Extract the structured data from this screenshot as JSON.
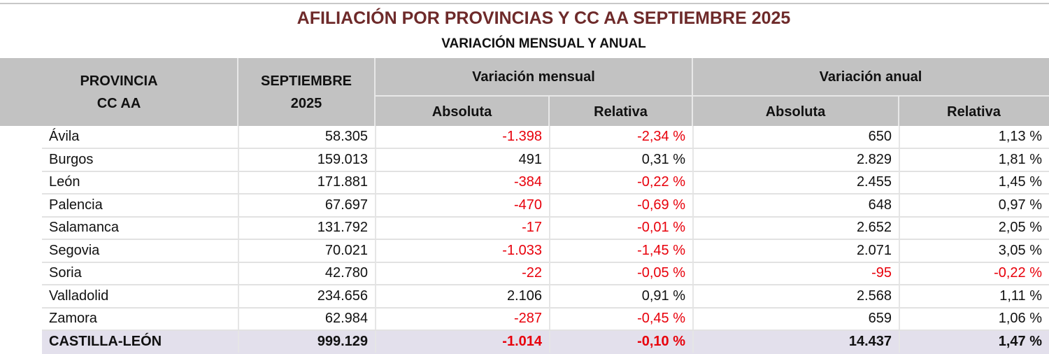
{
  "title": "AFILIACIÓN POR PROVINCIAS Y CC AA  SEPTIEMBRE 2025",
  "subtitle": "VARIACIÓN MENSUAL Y ANUAL",
  "headers": {
    "provincia_line1": "PROVINCIA",
    "provincia_line2": "CC AA",
    "month_line1": "SEPTIEMBRE",
    "month_line2": "2025",
    "monthly": "Variación  mensual",
    "annual": "Variación anual",
    "absolute": "Absoluta",
    "relative": "Relativa"
  },
  "colors": {
    "title": "#6e2a2a",
    "negative": "#e8000b",
    "header_bg": "#c2c2c2",
    "total_bg": "#e3e0ec"
  },
  "rows": [
    {
      "name": "Ávila",
      "total": "58.305",
      "m_abs": "-1.398",
      "m_rel": "-2,34 %",
      "a_abs": "650",
      "a_rel": "1,13 %"
    },
    {
      "name": "Burgos",
      "total": "159.013",
      "m_abs": "491",
      "m_rel": "0,31 %",
      "a_abs": "2.829",
      "a_rel": "1,81 %"
    },
    {
      "name": "León",
      "total": "171.881",
      "m_abs": "-384",
      "m_rel": "-0,22 %",
      "a_abs": "2.455",
      "a_rel": "1,45 %"
    },
    {
      "name": "Palencia",
      "total": "67.697",
      "m_abs": "-470",
      "m_rel": "-0,69 %",
      "a_abs": "648",
      "a_rel": "0,97 %"
    },
    {
      "name": "Salamanca",
      "total": "131.792",
      "m_abs": "-17",
      "m_rel": "-0,01 %",
      "a_abs": "2.652",
      "a_rel": "2,05 %"
    },
    {
      "name": "Segovia",
      "total": "70.021",
      "m_abs": "-1.033",
      "m_rel": "-1,45 %",
      "a_abs": "2.071",
      "a_rel": "3,05 %"
    },
    {
      "name": "Soria",
      "total": "42.780",
      "m_abs": "-22",
      "m_rel": "-0,05 %",
      "a_abs": "-95",
      "a_rel": "-0,22 %"
    },
    {
      "name": "Valladolid",
      "total": "234.656",
      "m_abs": "2.106",
      "m_rel": "0,91 %",
      "a_abs": "2.568",
      "a_rel": "1,11 %"
    },
    {
      "name": "Zamora",
      "total": "62.984",
      "m_abs": "-287",
      "m_rel": "-0,45 %",
      "a_abs": "659",
      "a_rel": "1,06 %"
    },
    {
      "name": "CASTILLA-LEÓN",
      "total": "999.129",
      "m_abs": "-1.014",
      "m_rel": "-0,10 %",
      "a_abs": "14.437",
      "a_rel": "1,47 %"
    }
  ]
}
